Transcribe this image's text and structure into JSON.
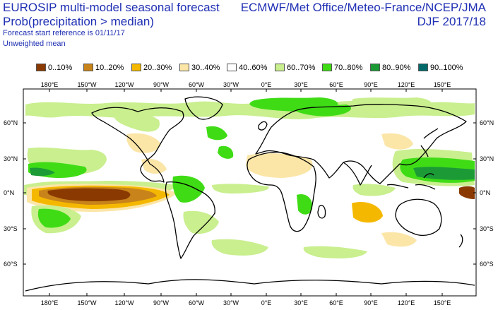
{
  "header": {
    "title": "EUROSIP multi-model seasonal forecast",
    "subtitle": "Prob(precipitation > median)",
    "forecast_ref": "Forecast start reference is 01/11/17",
    "mean_type": "Unweighted mean",
    "agencies": "ECMWF/Met Office/Meteo-France/NCEP/JMA",
    "season": "DJF 2017/18"
  },
  "legend": [
    {
      "label": "0..10%",
      "color": "#8a3a00"
    },
    {
      "label": "10..20%",
      "color": "#c8841a"
    },
    {
      "label": "20..30%",
      "color": "#f5b800"
    },
    {
      "label": "30..40%",
      "color": "#fbe6a8"
    },
    {
      "label": "40..60%",
      "color": "#ffffff"
    },
    {
      "label": "60..70%",
      "color": "#c9ef8e"
    },
    {
      "label": "70..80%",
      "color": "#3fdc16"
    },
    {
      "label": "80..90%",
      "color": "#1c9a36"
    },
    {
      "label": "90..100%",
      "color": "#006a6a"
    }
  ],
  "map": {
    "lon_labels": [
      "180°E",
      "150°W",
      "120°W",
      "90°W",
      "60°W",
      "30°W",
      "0°E",
      "30°E",
      "60°E",
      "90°E",
      "120°E",
      "150°E"
    ],
    "lat_labels": [
      "60°N",
      "30°N",
      "0°N",
      "30°S",
      "60°S"
    ]
  }
}
